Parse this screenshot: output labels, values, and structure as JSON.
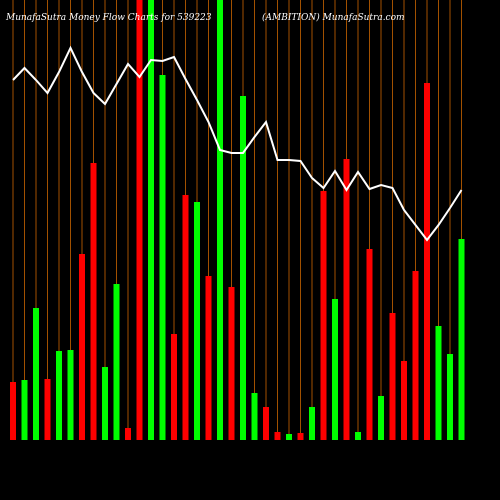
{
  "chart_data": {
    "type": "bar",
    "title": "MunafaSutra  Money Flow  Charts for 539223",
    "subtitle": "(AMBITION) MunafaSutra.com",
    "categories": [
      null,
      null,
      null,
      null,
      null,
      null,
      null,
      null,
      null,
      null,
      null,
      null,
      null,
      null,
      null,
      null,
      null,
      null,
      null,
      null,
      null,
      null,
      null,
      null,
      null,
      null,
      null,
      null,
      null,
      null,
      null,
      null,
      null,
      null,
      null,
      null,
      null,
      null,
      null,
      null
    ],
    "values": [
      58,
      60,
      132,
      61,
      89,
      90,
      186,
      277,
      73,
      156,
      12,
      440,
      440,
      365,
      106,
      245,
      238,
      164,
      440,
      153,
      344,
      47,
      33,
      8,
      6,
      7,
      33,
      249,
      141,
      281,
      8,
      191,
      44,
      127,
      79,
      169,
      357,
      114,
      86,
      201
    ],
    "colors": [
      "#ff0000",
      "#00ff00",
      "#00ff00",
      "#ff0000",
      "#00ff00",
      "#00ff00",
      "#ff0000",
      "#ff0000",
      "#00ff00",
      "#00ff00",
      "#ff0000",
      "#ff0000",
      "#00ff00",
      "#00ff00",
      "#ff0000",
      "#ff0000",
      "#00ff00",
      "#ff0000",
      "#00ff00",
      "#ff0000",
      "#00ff00",
      "#00ff00",
      "#ff0000",
      "#ff0000",
      "#00ff00",
      "#ff0000",
      "#00ff00",
      "#ff0000",
      "#00ff00",
      "#ff0000",
      "#00ff00",
      "#ff0000",
      "#00ff00",
      "#ff0000",
      "#ff0000",
      "#ff0000",
      "#ff0000",
      "#00ff00",
      "#00ff00",
      "#00ff00"
    ],
    "line": {
      "color": "#ffffff",
      "values": [
        360,
        372,
        360,
        347,
        368,
        392,
        368,
        347,
        336,
        356,
        376,
        363,
        380,
        379,
        383,
        361,
        340,
        318,
        290,
        287,
        287,
        303,
        318,
        280,
        280,
        279,
        262,
        252,
        269,
        250,
        268,
        251,
        255,
        252,
        230,
        215,
        200,
        215,
        232,
        250
      ]
    },
    "ylim": [
      0,
      440
    ],
    "grid": true,
    "grid_color": "#cc6600"
  }
}
